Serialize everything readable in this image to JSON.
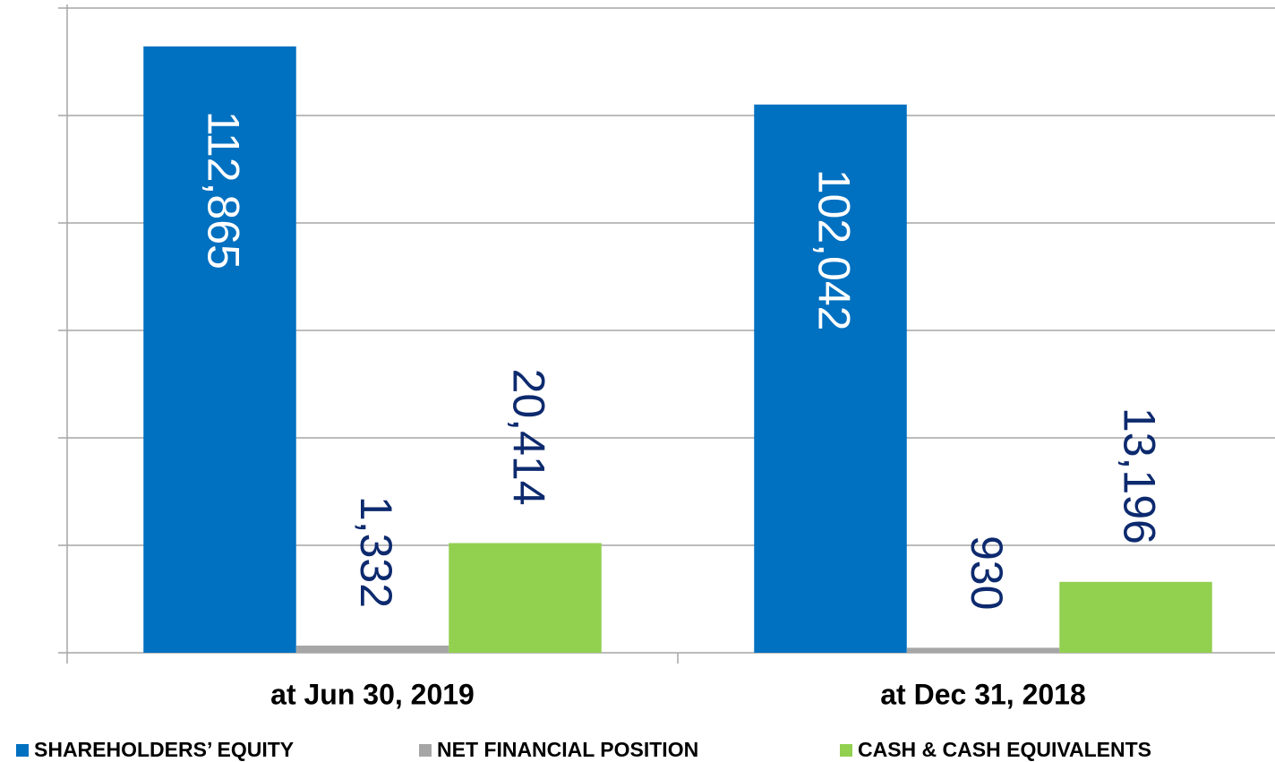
{
  "chart_data": {
    "type": "bar",
    "categories": [
      "at Jun 30, 2019",
      "at Dec 31, 2018"
    ],
    "series": [
      {
        "name": "SHAREHOLDERS’ EQUITY",
        "color": "#0070c0",
        "values": [
          112865,
          102042
        ],
        "value_labels": [
          "112,865",
          "102,042"
        ]
      },
      {
        "name": "NET FINANCIAL POSITION",
        "color": "#a6a6a6",
        "values": [
          1332,
          930
        ],
        "value_labels": [
          "1,332",
          "930"
        ]
      },
      {
        "name": "CASH & CASH EQUIVALENTS",
        "color": "#92d050",
        "values": [
          20414,
          13196
        ],
        "value_labels": [
          "20,414",
          "13,196"
        ]
      }
    ],
    "ylim": [
      0,
      120000
    ],
    "yticks": [
      0,
      20000,
      40000,
      60000,
      80000,
      100000,
      120000
    ],
    "grid": true,
    "legend": "bottom"
  }
}
